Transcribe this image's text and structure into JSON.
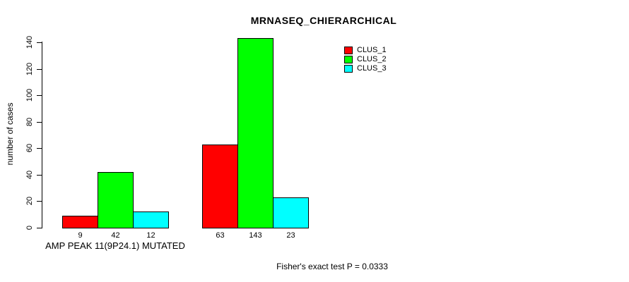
{
  "title": "MRNASEQ_CHIERARCHICAL",
  "footnote": "Fisher's exact test P = 0.0333",
  "chart_data": {
    "type": "bar",
    "title": "MRNASEQ_CHIERARCHICAL",
    "xlabel": "",
    "ylabel": "number of cases",
    "ylim": [
      0,
      140
    ],
    "y_ticks": [
      0,
      20,
      40,
      60,
      80,
      100,
      120,
      140
    ],
    "grid": false,
    "legend_position": "top-right",
    "categories": [
      "AMP PEAK 11(9P24.1) MUTATED",
      ""
    ],
    "series": [
      {
        "name": "CLUS_1",
        "color": "#FF0000",
        "values": [
          9,
          63
        ]
      },
      {
        "name": "CLUS_2",
        "color": "#00FF00",
        "values": [
          42,
          143
        ]
      },
      {
        "name": "CLUS_3",
        "color": "#00FFFF",
        "values": [
          12,
          23
        ]
      }
    ],
    "bar_value_labels": [
      [
        9,
        42,
        12
      ],
      [
        63,
        143,
        23
      ]
    ],
    "annotation": "Fisher's exact test P = 0.0333"
  }
}
